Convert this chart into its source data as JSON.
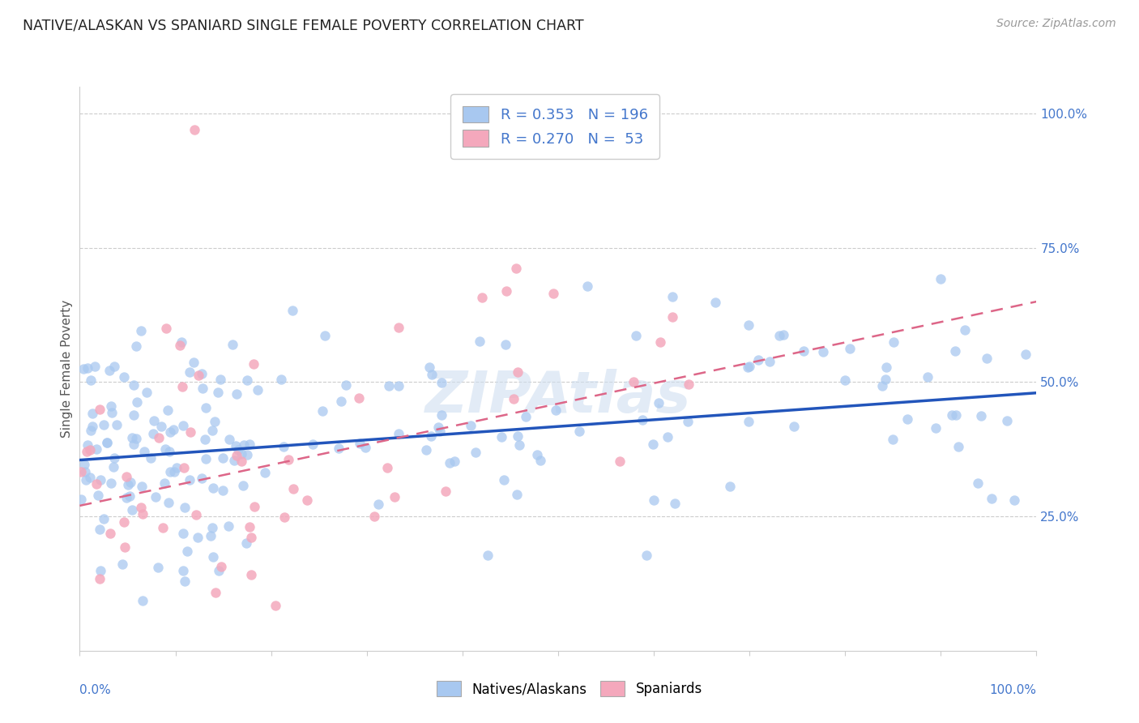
{
  "title": "NATIVE/ALASKAN VS SPANIARD SINGLE FEMALE POVERTY CORRELATION CHART",
  "source": "Source: ZipAtlas.com",
  "ylabel": "Single Female Poverty",
  "legend_label1": "Natives/Alaskans",
  "legend_label2": "Spaniards",
  "R1": "0.353",
  "N1": "196",
  "R2": "0.270",
  "N2": "53",
  "blue_color": "#a8c8f0",
  "pink_color": "#f4a8bc",
  "blue_line_color": "#2255bb",
  "pink_line_color": "#dd6688",
  "ytick_vals": [
    0.25,
    0.5,
    0.75,
    1.0
  ],
  "ytick_labels": [
    "25.0%",
    "50.0%",
    "75.0%",
    "100.0%"
  ],
  "yaxis_label_color": "#4477cc",
  "blue_intercept": 0.355,
  "blue_slope": 0.125,
  "pink_intercept": 0.27,
  "pink_slope": 0.38,
  "watermark": "ZIPAtlas"
}
